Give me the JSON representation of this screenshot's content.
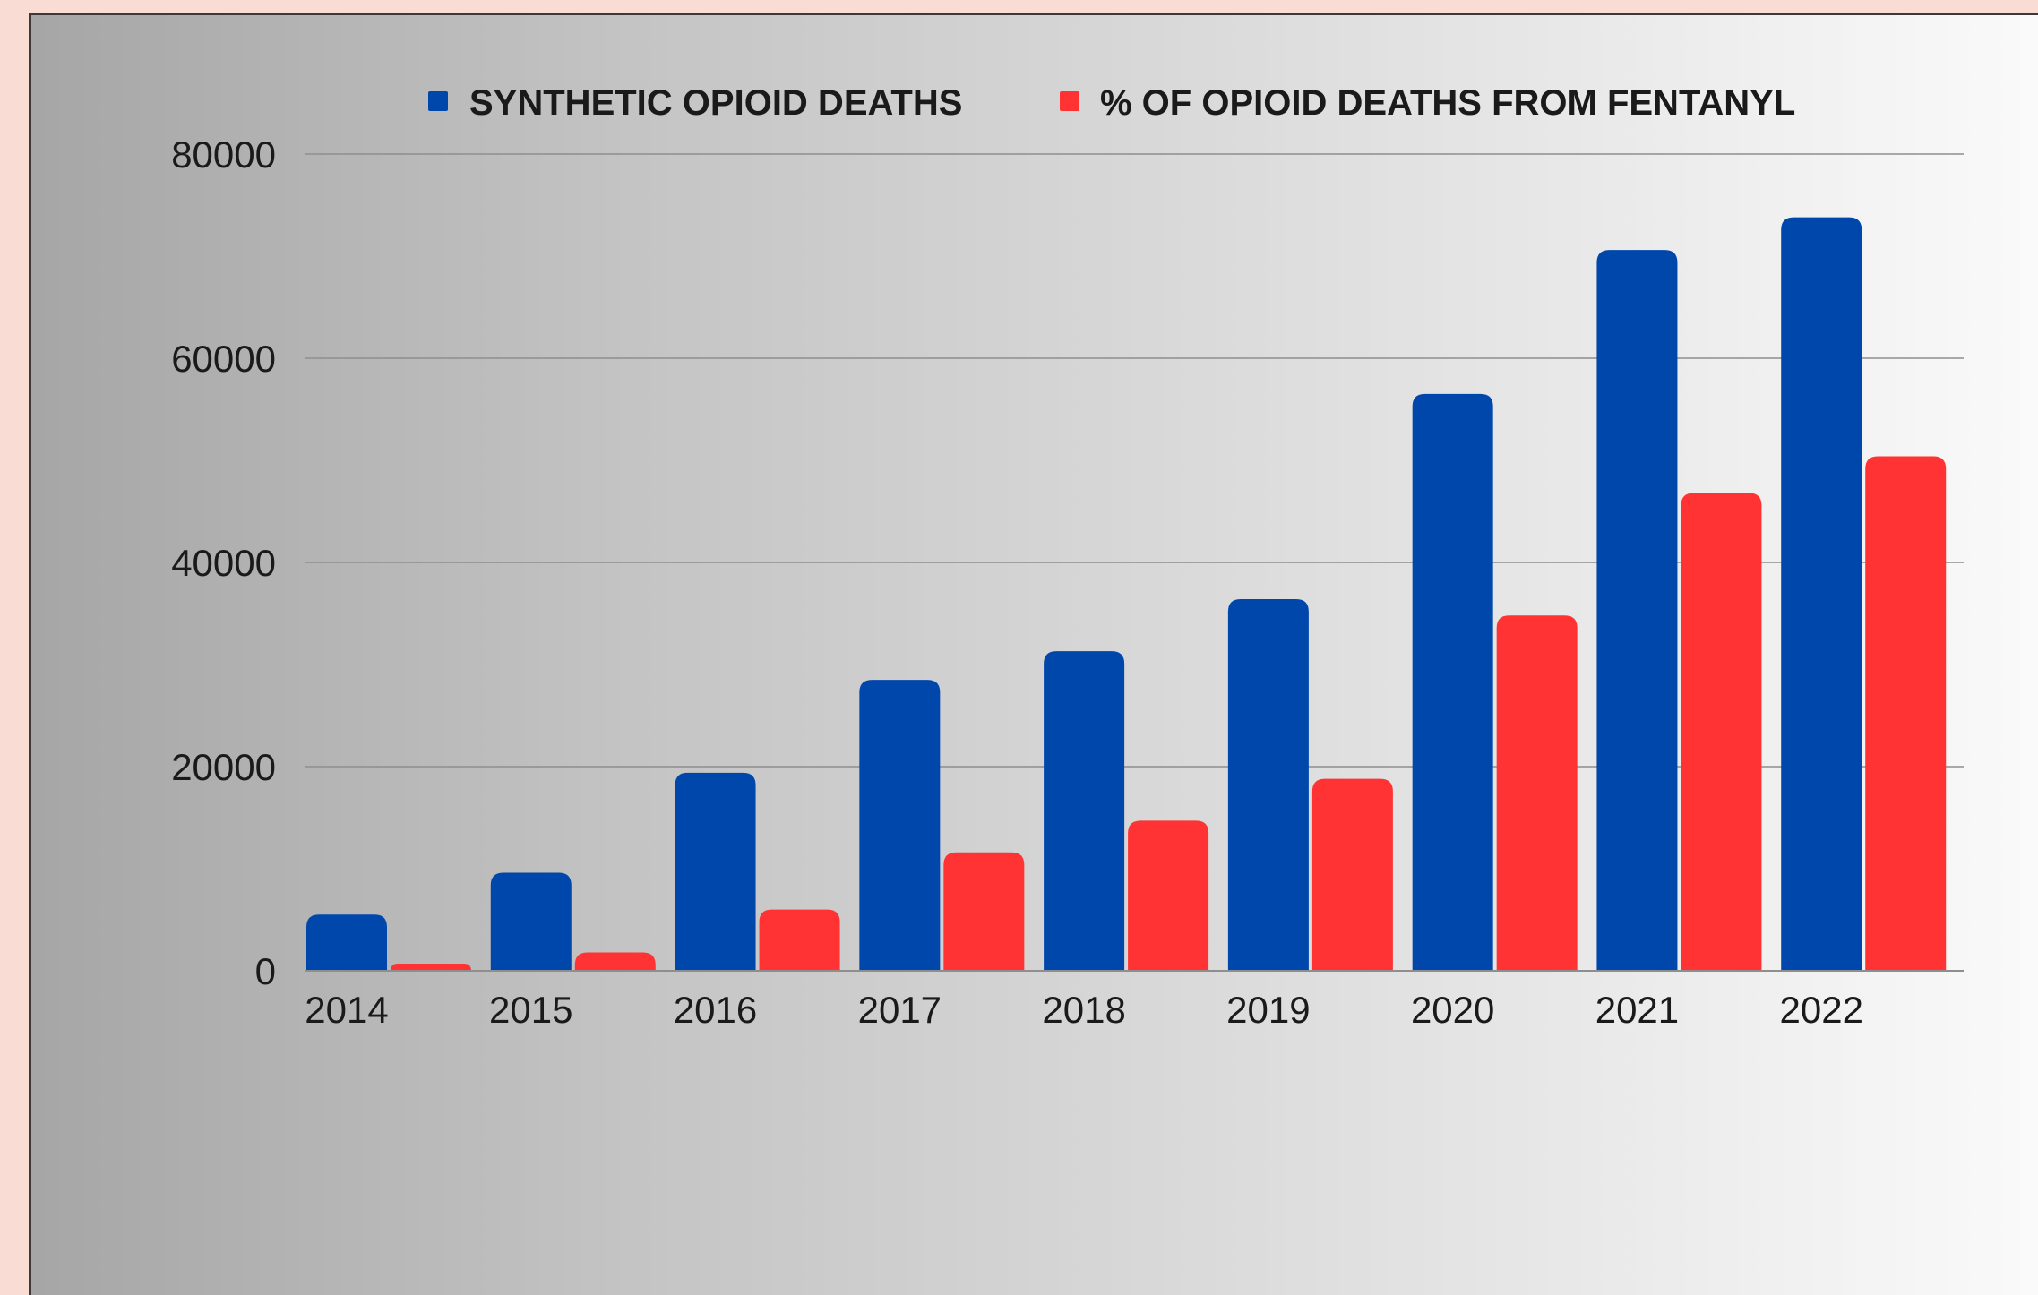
{
  "chart_data": {
    "type": "bar",
    "title": "",
    "xlabel": "",
    "ylabel": "",
    "categories": [
      "2014",
      "2015",
      "2016",
      "2017",
      "2018",
      "2019",
      "2020",
      "2021",
      "2022"
    ],
    "series": [
      {
        "name": "SYNTHETIC OPIOID DEATHS",
        "color": "#0047ab",
        "values": [
          5500,
          9600,
          19400,
          28500,
          31300,
          36400,
          56500,
          70600,
          73800
        ]
      },
      {
        "name": "% OF OPIOID DEATHS FROM FENTANYL",
        "color": "#ff3333",
        "values": [
          700,
          1800,
          6000,
          11600,
          14700,
          18800,
          34800,
          46800,
          50400
        ]
      }
    ],
    "ylim": [
      0,
      80000
    ],
    "yticks": [
      "0",
      "20000",
      "40000",
      "60000",
      "80000"
    ],
    "grid": true,
    "legend_position": "top"
  }
}
